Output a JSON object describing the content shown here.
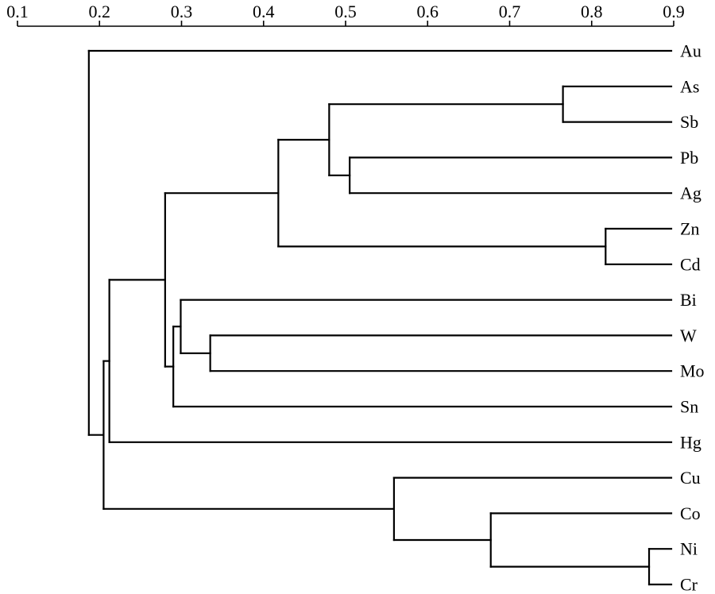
{
  "chart_data": {
    "type": "dendrogram",
    "orientation": "horizontal",
    "axis": {
      "position": "top",
      "min": 0.1,
      "max": 0.9,
      "ticks": [
        0.1,
        0.2,
        0.3,
        0.4,
        0.5,
        0.6,
        0.7,
        0.8,
        0.9
      ],
      "tick_labels": [
        "0.1",
        "0.2",
        "0.3",
        "0.4",
        "0.5",
        "0.6",
        "0.7",
        "0.8",
        "0.9"
      ]
    },
    "leaves": [
      "Au",
      "As",
      "Sb",
      "Pb",
      "Ag",
      "Zn",
      "Cd",
      "Bi",
      "W",
      "Mo",
      "Sn",
      "Hg",
      "Cu",
      "Co",
      "Ni",
      "Cr"
    ],
    "merges": [
      {
        "children": [
          "As",
          "Sb"
        ],
        "similarity": 0.765
      },
      {
        "children": [
          "Pb",
          "Ag"
        ],
        "similarity": 0.505
      },
      {
        "children": [
          "As-Sb",
          "Pb-Ag"
        ],
        "similarity": 0.48
      },
      {
        "children": [
          "Zn",
          "Cd"
        ],
        "similarity": 0.817
      },
      {
        "children": [
          "As-Sb-Pb-Ag",
          "Zn-Cd"
        ],
        "similarity": 0.418
      },
      {
        "children": [
          "W",
          "Mo"
        ],
        "similarity": 0.335
      },
      {
        "children": [
          "Bi",
          "W-Mo"
        ],
        "similarity": 0.299
      },
      {
        "children": [
          "Bi-W-Mo",
          "Sn"
        ],
        "similarity": 0.29
      },
      {
        "children": [
          "As-Sb-Pb-Ag-Zn-Cd",
          "Bi-W-Mo-Sn"
        ],
        "similarity": 0.28
      },
      {
        "children": [
          "cluster-As-Sn",
          "Hg"
        ],
        "similarity": 0.212
      },
      {
        "children": [
          "Ni",
          "Cr"
        ],
        "similarity": 0.87
      },
      {
        "children": [
          "Co",
          "Ni-Cr"
        ],
        "similarity": 0.677
      },
      {
        "children": [
          "Cu",
          "Co-Ni-Cr"
        ],
        "similarity": 0.559
      },
      {
        "children": [
          "cluster-As-Hg",
          "Cu-Co-Ni-Cr"
        ],
        "similarity": 0.205
      },
      {
        "children": [
          "Au",
          "cluster-As-Cr"
        ],
        "similarity": 0.187
      }
    ]
  }
}
